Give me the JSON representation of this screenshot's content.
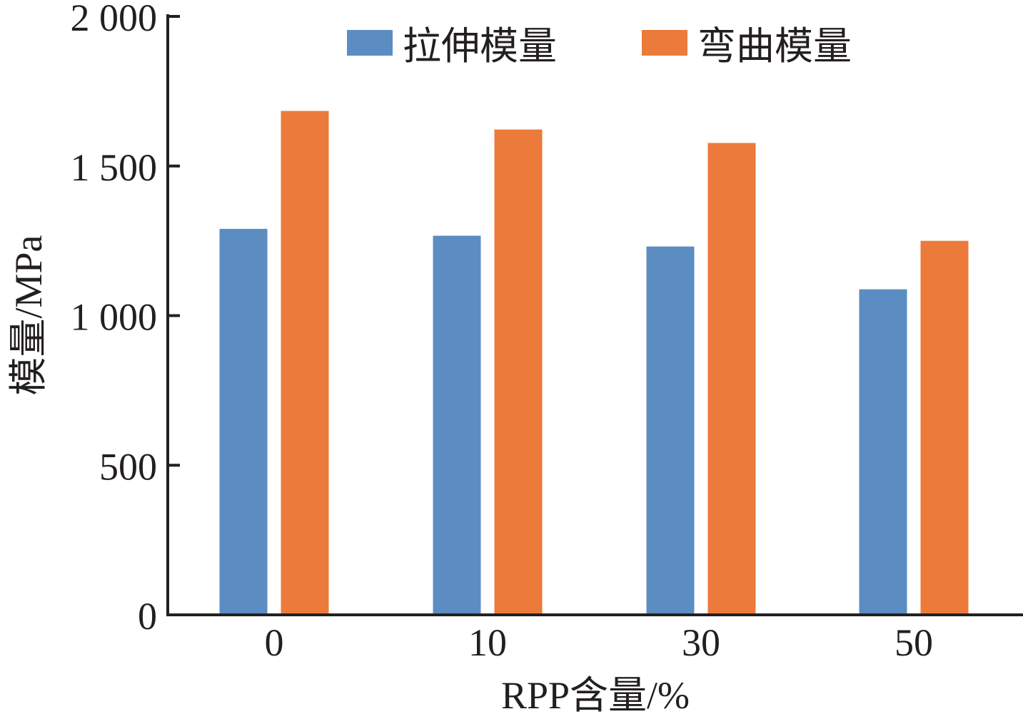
{
  "chart_data": {
    "type": "bar",
    "categories": [
      "0",
      "10",
      "30",
      "50"
    ],
    "series": [
      {
        "name": "拉伸模量",
        "color": "#5b8dc2",
        "values": [
          1290,
          1267,
          1231,
          1088
        ]
      },
      {
        "name": "弯曲模量",
        "color": "#ec7a3a",
        "values": [
          1684,
          1622,
          1577,
          1250
        ]
      }
    ],
    "xlabel": "RPP含量/%",
    "ylabel": "模量/MPa",
    "ylim": [
      0,
      2000
    ],
    "yticks": [
      0,
      500,
      1000,
      1500,
      2000
    ],
    "ytick_labels": [
      "0",
      "500",
      "1 000",
      "1 500",
      "2 000"
    ],
    "grid": false,
    "legend_position": "top"
  }
}
